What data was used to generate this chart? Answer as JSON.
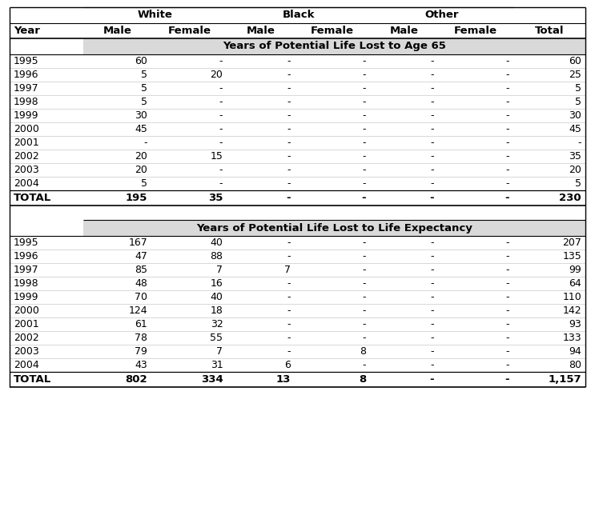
{
  "headers": [
    "Year",
    "Male",
    "Female",
    "Male",
    "Female",
    "Male",
    "Female",
    "Total"
  ],
  "section1_title": "Years of Potential Life Lost to Age 65",
  "section1_rows": [
    [
      "1995",
      "60",
      "-",
      "-",
      "-",
      "-",
      "-",
      "60"
    ],
    [
      "1996",
      "5",
      "20",
      "-",
      "-",
      "-",
      "-",
      "25"
    ],
    [
      "1997",
      "5",
      "-",
      "-",
      "-",
      "-",
      "-",
      "5"
    ],
    [
      "1998",
      "5",
      "-",
      "-",
      "-",
      "-",
      "-",
      "5"
    ],
    [
      "1999",
      "30",
      "-",
      "-",
      "-",
      "-",
      "-",
      "30"
    ],
    [
      "2000",
      "45",
      "-",
      "-",
      "-",
      "-",
      "-",
      "45"
    ],
    [
      "2001",
      "-",
      "-",
      "-",
      "-",
      "-",
      "-",
      "-"
    ],
    [
      "2002",
      "20",
      "15",
      "-",
      "-",
      "-",
      "-",
      "35"
    ],
    [
      "2003",
      "20",
      "-",
      "-",
      "-",
      "-",
      "-",
      "20"
    ],
    [
      "2004",
      "5",
      "-",
      "-",
      "-",
      "-",
      "-",
      "5"
    ]
  ],
  "section1_total": [
    "TOTAL",
    "195",
    "35",
    "-",
    "-",
    "-",
    "-",
    "230"
  ],
  "section2_title": "Years of Potential Life Lost to Life Expectancy",
  "section2_rows": [
    [
      "1995",
      "167",
      "40",
      "-",
      "-",
      "-",
      "-",
      "207"
    ],
    [
      "1996",
      "47",
      "88",
      "-",
      "-",
      "-",
      "-",
      "135"
    ],
    [
      "1997",
      "85",
      "7",
      "7",
      "-",
      "-",
      "-",
      "99"
    ],
    [
      "1998",
      "48",
      "16",
      "-",
      "-",
      "-",
      "-",
      "64"
    ],
    [
      "1999",
      "70",
      "40",
      "-",
      "-",
      "-",
      "-",
      "110"
    ],
    [
      "2000",
      "124",
      "18",
      "-",
      "-",
      "-",
      "-",
      "142"
    ],
    [
      "2001",
      "61",
      "32",
      "-",
      "-",
      "-",
      "-",
      "93"
    ],
    [
      "2002",
      "78",
      "55",
      "-",
      "-",
      "-",
      "-",
      "133"
    ],
    [
      "2003",
      "79",
      "7",
      "-",
      "8",
      "-",
      "-",
      "94"
    ],
    [
      "2004",
      "43",
      "31",
      "6",
      "-",
      "-",
      "-",
      "80"
    ]
  ],
  "section2_total": [
    "TOTAL",
    "802",
    "334",
    "13",
    "8",
    "-",
    "-",
    "1,157"
  ],
  "bg_color": "#ffffff",
  "section_title_bg": "#d9d9d9",
  "font_size": 9.0,
  "header_font_size": 9.5
}
